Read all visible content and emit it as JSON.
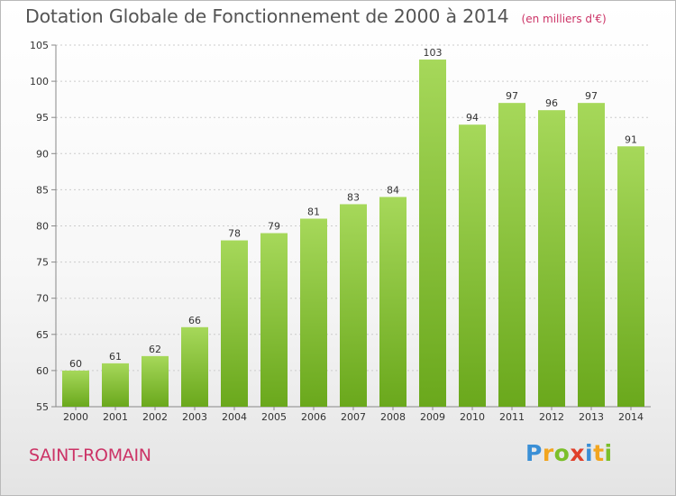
{
  "title": "Dotation Globale de Fonctionnement de 2000 à 2014",
  "unit": "(en milliers d'€)",
  "commune": "SAINT-ROMAIN",
  "logo": {
    "letters": [
      {
        "char": "P",
        "color": "#3a8fd6"
      },
      {
        "char": "r",
        "color": "#f2a51f"
      },
      {
        "char": "o",
        "color": "#7bbf2a"
      },
      {
        "char": "x",
        "color": "#e0402a"
      },
      {
        "char": "i",
        "color": "#3a8fd6"
      },
      {
        "char": "t",
        "color": "#f2a51f"
      },
      {
        "char": "i",
        "color": "#7bbf2a"
      }
    ]
  },
  "colors": {
    "bar_light": "#a6d85a",
    "bar_dark": "#6aa81c",
    "grid": "#cccccc",
    "accent": "#cc3366"
  },
  "chart_data": {
    "type": "bar",
    "title": "Dotation Globale de Fonctionnement de 2000 à 2014",
    "categories": [
      "2000",
      "2001",
      "2002",
      "2003",
      "2004",
      "2005",
      "2006",
      "2007",
      "2008",
      "2009",
      "2010",
      "2011",
      "2012",
      "2013",
      "2014"
    ],
    "values": [
      60,
      61,
      62,
      66,
      78,
      79,
      81,
      83,
      84,
      103,
      94,
      97,
      96,
      97,
      91
    ],
    "ylim": [
      55,
      105
    ],
    "yticks": [
      55,
      60,
      65,
      70,
      75,
      80,
      85,
      90,
      95,
      100,
      105
    ],
    "grid": true,
    "data_labels": true
  }
}
